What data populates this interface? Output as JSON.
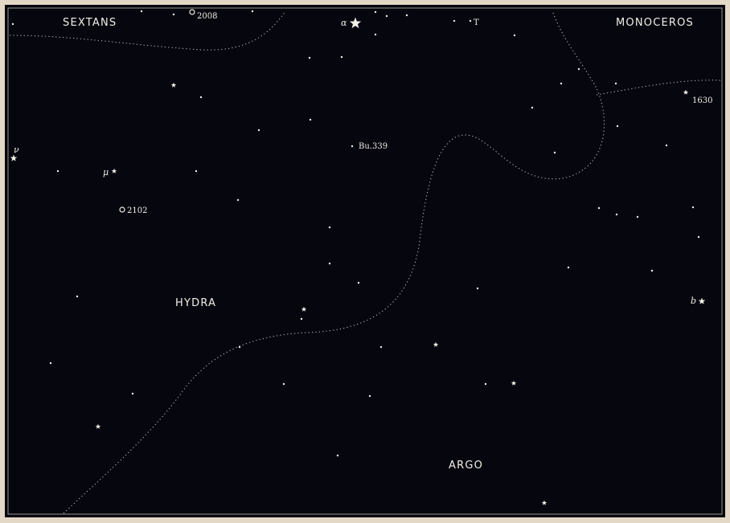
{
  "constellations": [
    "SEXTANS",
    "MONOCEROS",
    "HYDRA",
    "ARGO"
  ],
  "labels": {
    "sigma2008": "2008",
    "sigma2102": "2102",
    "bu339": "Bu.339",
    "n1630": "1630",
    "alpha": "α",
    "mu": "μ",
    "nu": "ν",
    "b": "b",
    "T": "T"
  },
  "colors": {
    "sky": "#06060f",
    "frame_outer": "#e3d8c6",
    "ink": "#f2efe6"
  }
}
